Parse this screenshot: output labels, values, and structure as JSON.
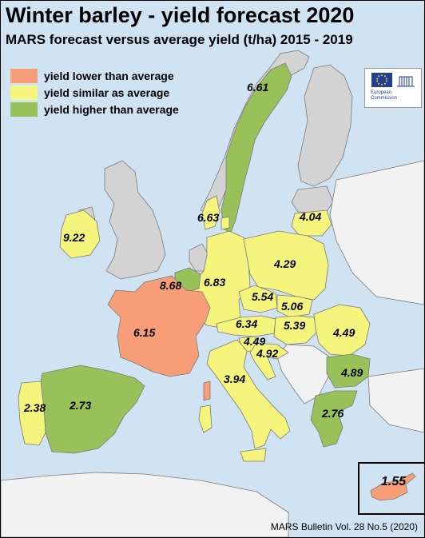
{
  "title": "Winter barley - yield forecast 2020",
  "subtitle": "MARS forecast versus average yield (t/ha) 2015 - 2019",
  "legend": [
    {
      "label": "yield lower than average",
      "color": "#f79e78"
    },
    {
      "label": "yield similar as average",
      "color": "#f5f57d"
    },
    {
      "label": "yield higher than average",
      "color": "#98c15a"
    }
  ],
  "colors": {
    "sea": "#cfe3f2",
    "no_data": "#d3d3d3",
    "non_eu": "#f2f2f2",
    "border": "#7a7a7a"
  },
  "logo": {
    "text": "European Commission",
    "icon": "eu-flag-icon"
  },
  "footer": "MARS Bulletin Vol. 28 No.5 (2020)",
  "regions": [
    {
      "name": "Sweden",
      "value": "6.61",
      "category": "higher"
    },
    {
      "name": "Denmark",
      "value": "6.63",
      "category": "similar"
    },
    {
      "name": "Lithuania",
      "value": "4.04",
      "category": "similar"
    },
    {
      "name": "Ireland",
      "value": "9.22",
      "category": "similar"
    },
    {
      "name": "Poland",
      "value": "4.29",
      "category": "similar"
    },
    {
      "name": "Belgium",
      "value": "8.68",
      "category": "higher"
    },
    {
      "name": "Germany",
      "value": "6.83",
      "category": "similar"
    },
    {
      "name": "Czechia",
      "value": "5.54",
      "category": "similar"
    },
    {
      "name": "Slovakia",
      "value": "5.06",
      "category": "similar"
    },
    {
      "name": "France",
      "value": "6.15",
      "category": "lower"
    },
    {
      "name": "Austria",
      "value": "6.34",
      "category": "similar"
    },
    {
      "name": "Hungary",
      "value": "5.39",
      "category": "similar"
    },
    {
      "name": "Romania",
      "value": "4.49",
      "category": "similar"
    },
    {
      "name": "Slovenia",
      "value": "4.49",
      "category": "similar"
    },
    {
      "name": "Croatia",
      "value": "4.92",
      "category": "similar"
    },
    {
      "name": "Bulgaria",
      "value": "4.89",
      "category": "higher"
    },
    {
      "name": "Italy",
      "value": "3.94",
      "category": "similar"
    },
    {
      "name": "Portugal",
      "value": "2.38",
      "category": "similar"
    },
    {
      "name": "Spain",
      "value": "2.73",
      "category": "higher"
    },
    {
      "name": "Greece",
      "value": "2.76",
      "category": "higher"
    },
    {
      "name": "Cyprus",
      "value": "1.55",
      "category": "lower"
    }
  ]
}
